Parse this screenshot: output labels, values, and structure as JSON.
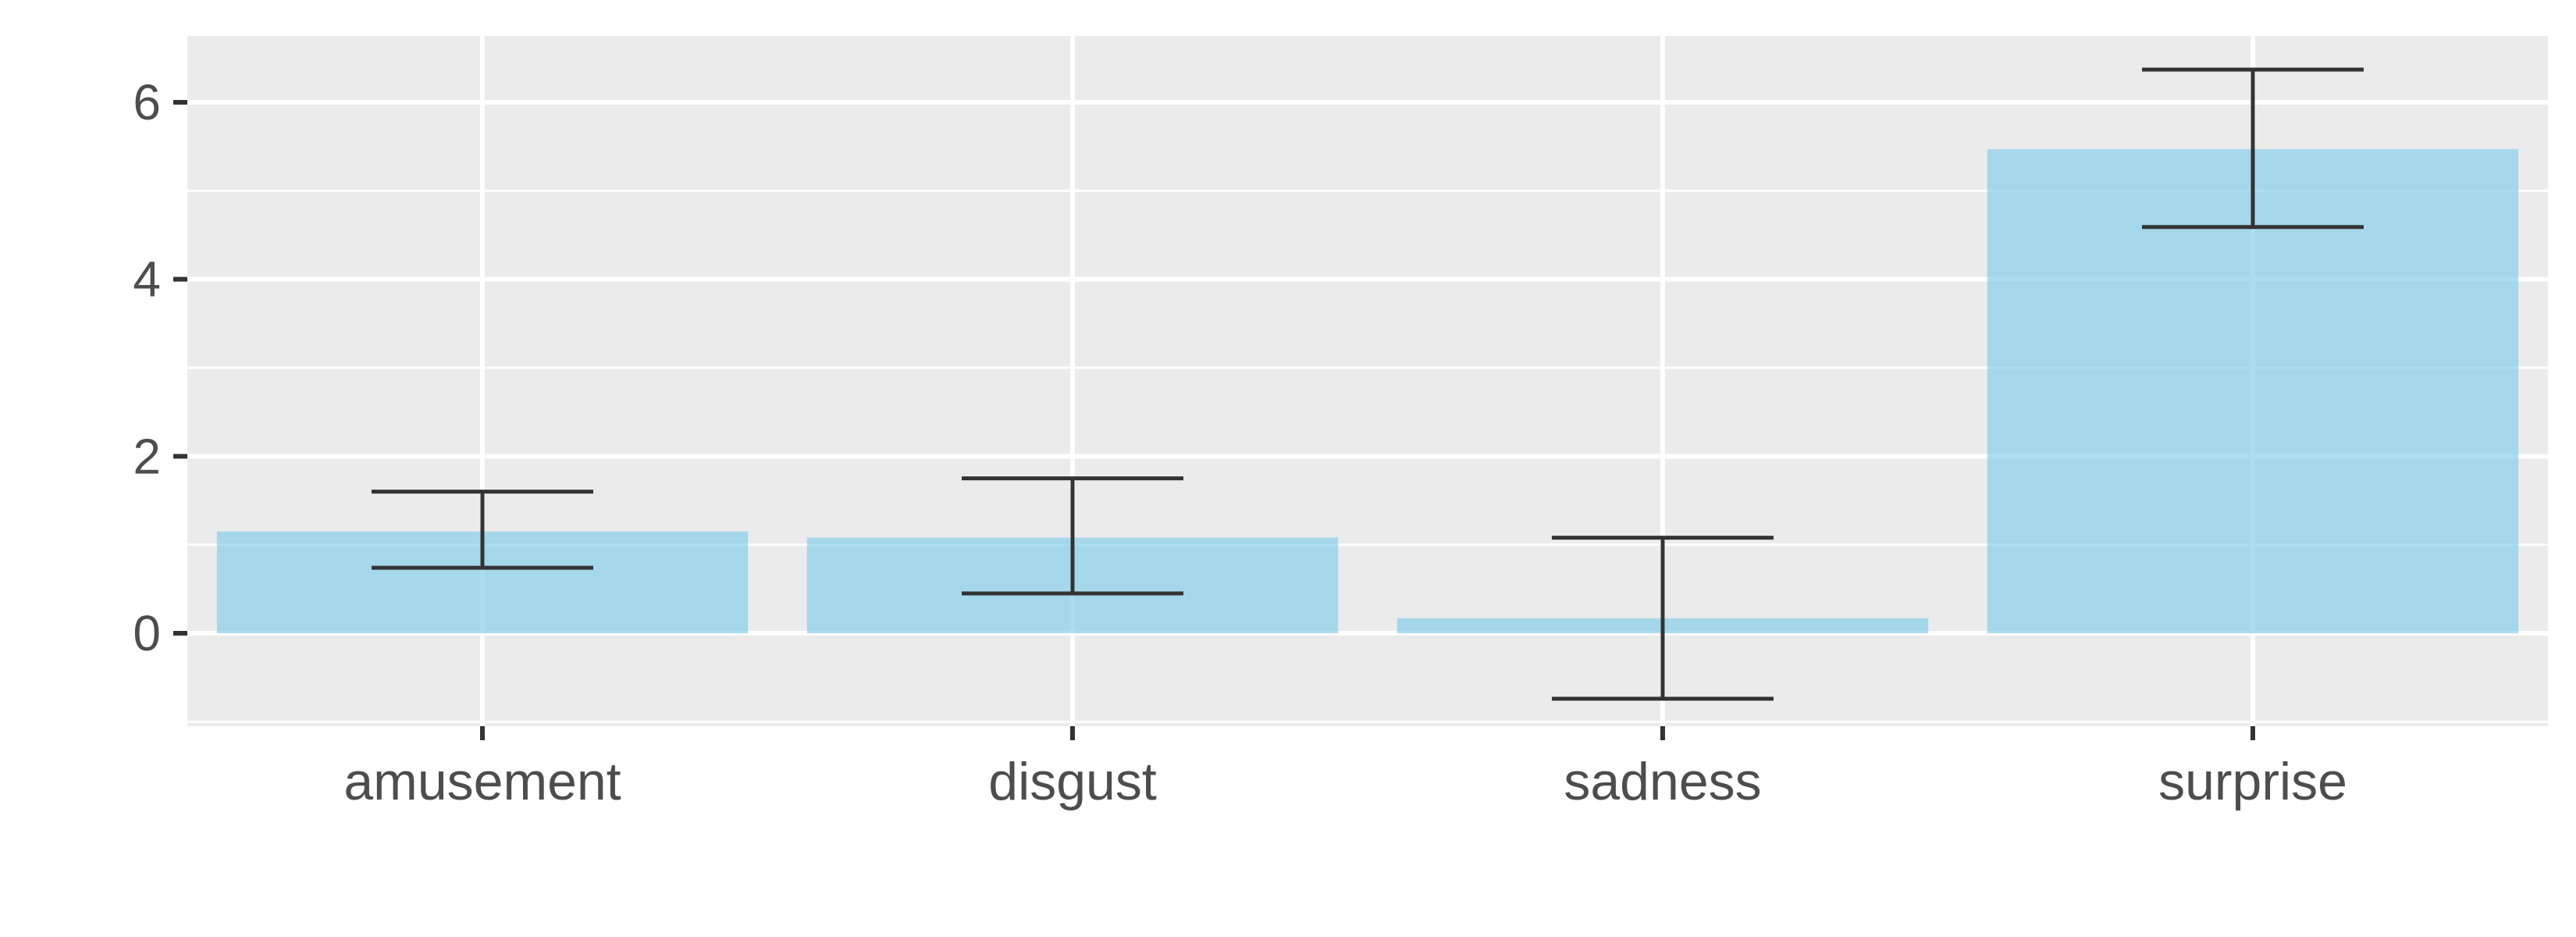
{
  "chart_data": {
    "type": "bar",
    "title": "",
    "xlabel": "",
    "ylabel": "",
    "categories": [
      "amusement",
      "disgust",
      "sadness",
      "surprise"
    ],
    "values": [
      1.15,
      1.08,
      0.17,
      5.47
    ],
    "error_low": [
      0.74,
      0.45,
      -0.74,
      4.59
    ],
    "error_high": [
      1.6,
      1.75,
      1.08,
      6.37
    ],
    "ylim": [
      -1.05,
      6.75
    ],
    "yticks": [
      0,
      2,
      4,
      6
    ],
    "grid": true,
    "legend": "none",
    "colors": {
      "bar": "#87ceeb",
      "panel": "#ebebeb",
      "grid": "#ffffff",
      "errorbar": "#333333",
      "tick": "#333333",
      "text": "#4d4d4d"
    }
  }
}
